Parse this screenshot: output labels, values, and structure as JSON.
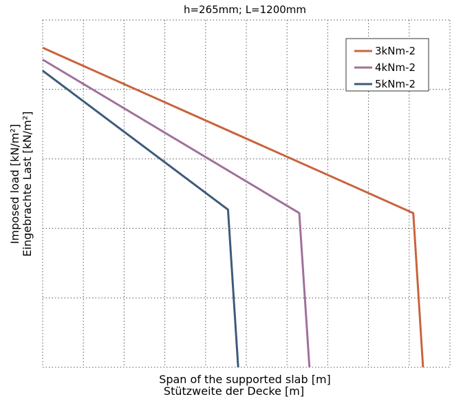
{
  "chart_data": {
    "type": "line",
    "title": "h=265mm; L=1200mm",
    "xlabel": [
      "Span of the supported slab [m]",
      "Stützweite der Decke [m]"
    ],
    "ylabel": [
      "Imposed load [kN/m²]",
      "Eingebrachte Last [kN/m²]"
    ],
    "xlim": [
      0,
      10
    ],
    "ylim": [
      0,
      5
    ],
    "grid": true,
    "tick_labels_shown": false,
    "legend_position": "top-right",
    "series": [
      {
        "name": "3kNm-2",
        "color": "#c8643c",
        "x": [
          0,
          9.1,
          9.34
        ],
        "y": [
          4.6,
          2.22,
          0
        ]
      },
      {
        "name": "4kNm-2",
        "color": "#a0709a",
        "x": [
          0,
          6.3,
          6.55
        ],
        "y": [
          4.43,
          2.22,
          0
        ]
      },
      {
        "name": "5kNm-2",
        "color": "#3d5a7a",
        "x": [
          0,
          4.55,
          4.8
        ],
        "y": [
          4.27,
          2.27,
          0
        ]
      }
    ]
  }
}
